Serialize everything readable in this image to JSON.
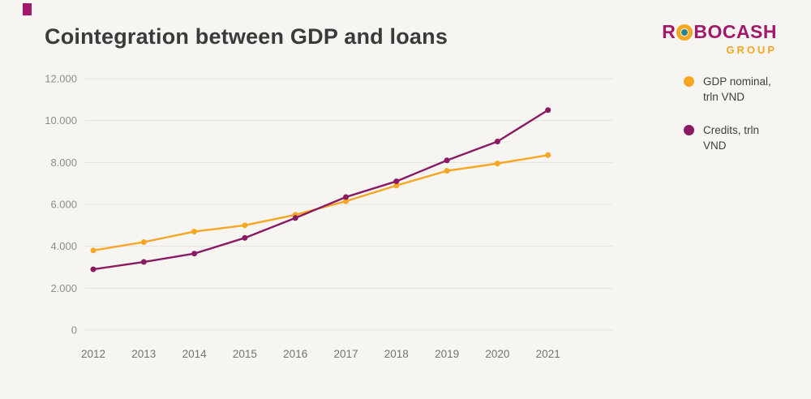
{
  "page": {
    "title": "Cointegration between GDP and loans"
  },
  "logo": {
    "brand_r": "R",
    "brand_rest": "BOCASH",
    "sub": "GROUP",
    "brand_color": "#A1196B",
    "sub_color": "#F5A623"
  },
  "legend": [
    {
      "label": "GDP nominal, trln VND",
      "color": "#F5A623"
    },
    {
      "label": "Credits, trln VND",
      "color": "#8A1B63"
    }
  ],
  "chart_data": {
    "type": "line",
    "title": "Cointegration between GDP and loans",
    "x": [
      "2012",
      "2013",
      "2014",
      "2015",
      "2016",
      "2017",
      "2018",
      "2019",
      "2020",
      "2021"
    ],
    "series": [
      {
        "name": "GDP nominal, trln VND",
        "color": "#F5A623",
        "values": [
          3800,
          4200,
          4700,
          5000,
          5500,
          6150,
          6900,
          7600,
          7950,
          8350
        ]
      },
      {
        "name": "Credits, trln VND",
        "color": "#8A1B63",
        "values": [
          2900,
          3250,
          3650,
          4400,
          5350,
          6350,
          7100,
          8100,
          9000,
          10500
        ]
      }
    ],
    "ylim": [
      0,
      12000
    ],
    "yticks": [
      {
        "value": 0,
        "label": "0"
      },
      {
        "value": 2000,
        "label": "2.000"
      },
      {
        "value": 4000,
        "label": "4.000"
      },
      {
        "value": 6000,
        "label": "6.000"
      },
      {
        "value": 8000,
        "label": "8.000"
      },
      {
        "value": 10000,
        "label": "10.000"
      },
      {
        "value": 12000,
        "label": "12.000"
      }
    ],
    "grid": true,
    "legend_position": "right",
    "xlabel": "",
    "ylabel": ""
  }
}
